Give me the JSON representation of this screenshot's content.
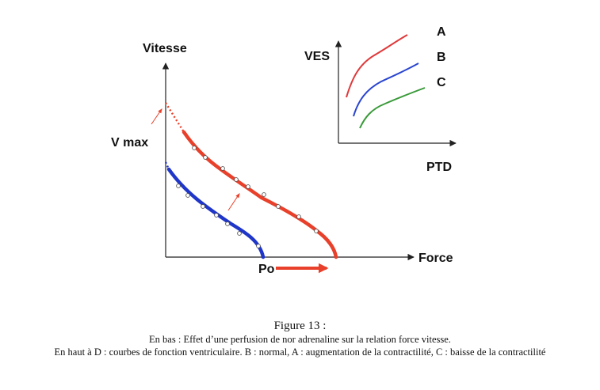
{
  "main_plot": {
    "y_axis_label": "Vitesse",
    "x_axis_label": "Force",
    "vmax_label": "V max",
    "po_label": "Po",
    "colors": {
      "inotrope_curve": "#e8402a",
      "normal_curve": "#1f36c9",
      "arrow": "#e8402a",
      "marker": "#ffffff"
    }
  },
  "inset_plot": {
    "y_axis_label": "VES",
    "x_axis_label": "PTD",
    "curve_labels": {
      "A": "A",
      "B": "B",
      "C": "C"
    },
    "colors": {
      "A": "#e0393a",
      "B": "#2a45d0",
      "C": "#3a9a3a"
    }
  },
  "caption": {
    "title": "Figure 13 :",
    "line1": "En bas : Effet d’une perfusion de nor adrenaline sur la relation force vitesse.",
    "line2": "En haut à D : courbes de fonction ventriculaire. B : normal, A : augmentation de la contractilité, C : baisse de la contractilité"
  }
}
